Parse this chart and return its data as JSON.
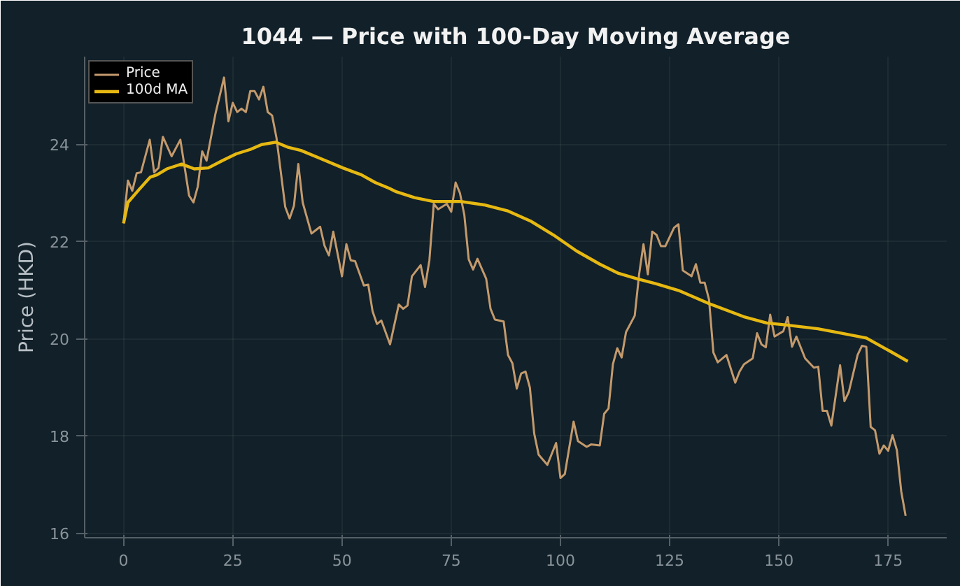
{
  "chart_data": {
    "type": "line",
    "title": "1044 — Price with 100-Day Moving Average",
    "ylabel": "Price (HKD)",
    "xlim": [
      -8.9,
      188.4
    ],
    "ylim": [
      15.9,
      25.8
    ],
    "xticks": [
      0,
      25,
      50,
      75,
      100,
      125,
      150,
      175
    ],
    "yticks": [
      16,
      18,
      20,
      22,
      24
    ],
    "grid": true,
    "legend": "top left",
    "line_style": "solid",
    "series": [
      {
        "name": "Price",
        "color": "#c49a6c",
        "x": [
          0,
          1,
          2,
          3,
          4,
          6,
          7,
          8,
          9,
          11,
          13,
          15,
          16,
          17,
          18,
          19,
          21,
          23,
          24,
          25,
          26,
          27,
          28,
          29,
          30,
          31,
          32,
          33,
          34,
          35,
          37,
          38,
          39,
          40,
          41,
          43,
          45,
          46,
          47,
          48,
          50,
          51,
          52,
          53,
          55,
          56,
          57,
          58,
          59,
          61,
          63,
          64,
          65,
          66,
          68,
          69,
          70,
          71,
          72,
          74,
          75,
          76,
          77,
          78,
          79,
          80,
          81,
          83,
          84,
          85,
          87,
          88,
          89,
          90,
          91,
          92,
          93,
          94,
          95,
          97,
          99,
          100,
          101,
          103,
          104,
          106,
          107,
          109,
          110,
          111,
          112,
          113,
          114,
          115,
          117,
          118,
          119,
          120,
          121,
          122,
          123,
          124,
          126,
          127,
          128,
          130,
          131,
          132,
          133,
          134,
          135,
          136,
          138,
          140,
          141,
          142,
          144,
          145,
          146,
          147,
          148,
          149,
          151,
          152,
          153,
          154,
          156,
          158,
          159,
          160,
          161,
          162,
          164,
          165,
          166,
          168,
          169,
          170,
          171,
          172,
          173,
          174,
          175,
          176,
          177,
          178,
          179
        ],
        "values": [
          22.37,
          23.25,
          23.04,
          23.4,
          23.42,
          24.09,
          23.42,
          23.51,
          24.15,
          23.75,
          24.09,
          22.94,
          22.8,
          23.13,
          23.85,
          23.66,
          24.61,
          25.37,
          24.47,
          24.85,
          24.66,
          24.73,
          24.66,
          25.09,
          25.09,
          24.92,
          25.18,
          24.66,
          24.59,
          24.13,
          22.71,
          22.47,
          22.73,
          23.59,
          22.8,
          22.16,
          22.3,
          21.91,
          21.71,
          22.2,
          21.28,
          21.94,
          21.61,
          21.59,
          21.09,
          21.11,
          20.56,
          20.3,
          20.37,
          19.88,
          20.7,
          20.61,
          20.68,
          21.28,
          21.51,
          21.06,
          21.61,
          22.77,
          22.66,
          22.77,
          22.61,
          23.21,
          22.99,
          22.54,
          21.63,
          21.42,
          21.64,
          21.23,
          20.61,
          20.39,
          20.35,
          19.66,
          19.49,
          18.97,
          19.28,
          19.32,
          18.99,
          18.04,
          17.61,
          17.4,
          17.85,
          17.13,
          17.21,
          18.29,
          17.89,
          17.77,
          17.82,
          17.8,
          18.45,
          18.56,
          19.47,
          19.8,
          19.61,
          20.13,
          20.47,
          21.32,
          21.94,
          21.32,
          22.2,
          22.13,
          21.9,
          21.9,
          22.28,
          22.35,
          21.4,
          21.28,
          21.53,
          21.15,
          21.15,
          20.8,
          19.71,
          19.51,
          19.66,
          19.09,
          19.32,
          19.47,
          19.59,
          20.11,
          19.88,
          19.82,
          20.49,
          20.04,
          20.15,
          20.44,
          19.83,
          20.04,
          19.59,
          19.4,
          19.42,
          18.51,
          18.51,
          18.21,
          19.45,
          18.71,
          18.9,
          19.66,
          19.85,
          19.83,
          18.18,
          18.11,
          17.63,
          17.8,
          17.69,
          18.01,
          17.7,
          16.85,
          16.35
        ]
      },
      {
        "name": "100d MA",
        "color": "#e6b812",
        "x": [
          0,
          1,
          3.5,
          6.1,
          7.7,
          9.9,
          13.3,
          16.2,
          19.4,
          22.6,
          25.8,
          29,
          31.6,
          34.8,
          37.5,
          40.6,
          44.9,
          50.2,
          54.4,
          57.6,
          60.8,
          62.4,
          66.6,
          70.9,
          77.2,
          82.5,
          87.8,
          93.1,
          98.4,
          103.7,
          109,
          113.3,
          117.5,
          121.8,
          127,
          134.5,
          141.9,
          147.2,
          151.5,
          158.9,
          164.2,
          170,
          174.8,
          179.5
        ],
        "values": [
          22.37,
          22.8,
          23.06,
          23.32,
          23.37,
          23.49,
          23.59,
          23.49,
          23.51,
          23.66,
          23.8,
          23.89,
          23.99,
          24.04,
          23.94,
          23.87,
          23.71,
          23.51,
          23.37,
          23.21,
          23.09,
          23.02,
          22.9,
          22.82,
          22.82,
          22.75,
          22.63,
          22.42,
          22.13,
          21.8,
          21.53,
          21.34,
          21.23,
          21.13,
          20.99,
          20.7,
          20.45,
          20.32,
          20.28,
          20.2,
          20.11,
          20.01,
          19.77,
          19.53
        ]
      }
    ]
  }
}
